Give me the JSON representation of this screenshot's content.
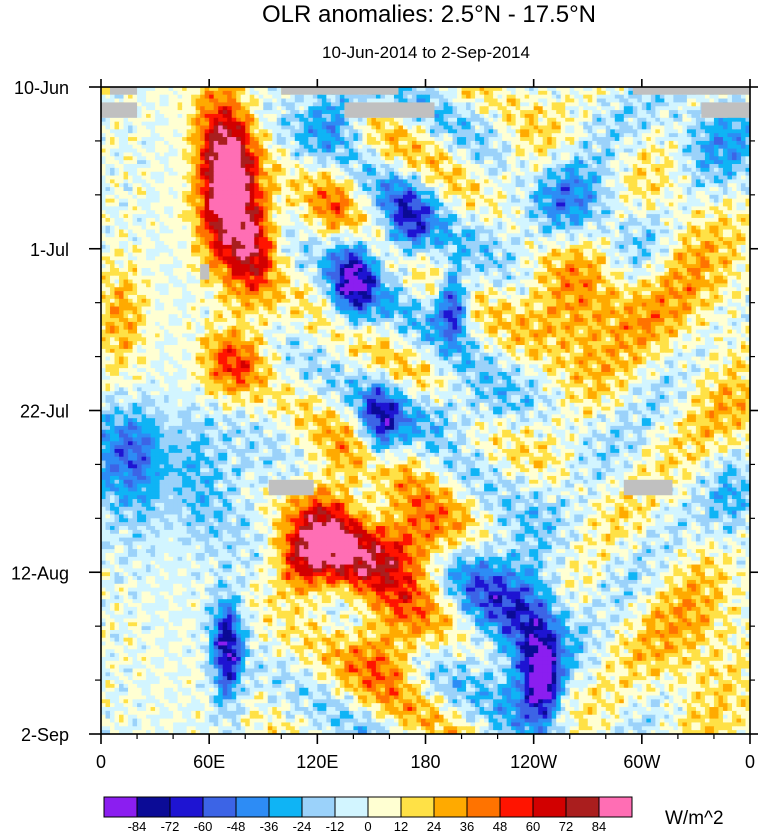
{
  "chart_data": {
    "type": "heatmap",
    "title": "OLR anomalies: 2.5°N - 17.5°N",
    "subtitle": "10-Jun-2014 to 2-Sep-2014",
    "xlabel": "",
    "ylabel": "",
    "x_tick_labels": [
      "0",
      "60E",
      "120E",
      "180",
      "120W",
      "60W",
      "0"
    ],
    "x_tick_values_deg_east": [
      0,
      60,
      120,
      180,
      240,
      300,
      360
    ],
    "xlim_deg_east": [
      0,
      360
    ],
    "y_tick_labels": [
      "10-Jun",
      "1-Jul",
      "22-Jul",
      "12-Aug",
      "2-Sep"
    ],
    "y_tick_values": [
      "2014-06-10",
      "2014-07-01",
      "2014-07-22",
      "2014-08-12",
      "2014-09-02"
    ],
    "ylim": [
      "2014-06-10",
      "2014-09-02"
    ],
    "y_direction": "time increasing downward",
    "colorbar": {
      "units": "W/m^2",
      "levels": [
        -84,
        -72,
        -60,
        -48,
        -36,
        -24,
        -12,
        0,
        12,
        24,
        36,
        48,
        60,
        72,
        84
      ],
      "level_labels": [
        "-84",
        "-72",
        "-60",
        "-48",
        "-36",
        "-24",
        "-12",
        "0",
        "12",
        "24",
        "36",
        "48",
        "60",
        "72",
        "84"
      ],
      "colors": [
        "#8b1ef0",
        "#0b0b96",
        "#1e14d2",
        "#3c64e6",
        "#2d8cf5",
        "#0fb4f5",
        "#9bd2fa",
        "#d2f5ff",
        "#ffffd2",
        "#ffe146",
        "#ffaa00",
        "#ff7300",
        "#ff1400",
        "#d20000",
        "#aa1e1e",
        "#ff6eb4"
      ],
      "placement": "bottom"
    },
    "missing_color": "#c0c0c0",
    "missing_regions": [
      {
        "lon": [
          5,
          20
        ],
        "date": [
          "2014-06-10",
          "2014-06-11"
        ]
      },
      {
        "lon": [
          100,
          165
        ],
        "date": [
          "2014-06-10",
          "2014-06-11"
        ]
      },
      {
        "lon": [
          295,
          360
        ],
        "date": [
          "2014-06-10",
          "2014-06-11"
        ]
      },
      {
        "lon": [
          0,
          20
        ],
        "date": [
          "2014-06-12",
          "2014-06-14"
        ]
      },
      {
        "lon": [
          135,
          185
        ],
        "date": [
          "2014-06-12",
          "2014-06-14"
        ]
      },
      {
        "lon": [
          333,
          360
        ],
        "date": [
          "2014-06-12",
          "2014-06-14"
        ]
      },
      {
        "lon": [
          55,
          60
        ],
        "date": [
          "2014-07-03",
          "2014-07-05"
        ]
      },
      {
        "lon": [
          93,
          118
        ],
        "date": [
          "2014-07-31",
          "2014-08-02"
        ]
      },
      {
        "lon": [
          290,
          317
        ],
        "date": [
          "2014-07-31",
          "2014-08-02"
        ]
      }
    ],
    "features": [
      {
        "lon": 72,
        "date": "2014-06-23",
        "value": 78,
        "sx": 10,
        "sy": 6
      },
      {
        "lon": 65,
        "date": "2014-06-20",
        "value": 50,
        "sx": 12,
        "sy": 9
      },
      {
        "lon": 85,
        "date": "2014-06-29",
        "value": 40,
        "sx": 8,
        "sy": 4
      },
      {
        "lon": 73,
        "date": "2014-07-16",
        "value": 50,
        "sx": 12,
        "sy": 3
      },
      {
        "lon": 125,
        "date": "2014-08-06",
        "value": 60,
        "sx": 13,
        "sy": 5
      },
      {
        "lon": 150,
        "date": "2014-08-09",
        "value": 52,
        "sx": 22,
        "sy": 4
      },
      {
        "lon": 175,
        "date": "2014-08-08",
        "value": 40,
        "sx": 15,
        "sy": 3
      },
      {
        "lon": 160,
        "date": "2014-08-21",
        "value": 52,
        "sx": 16,
        "sy": 4
      },
      {
        "lon": 110,
        "date": "2014-08-11",
        "value": 50,
        "sx": 10,
        "sy": 3
      },
      {
        "lon": 265,
        "date": "2014-07-09",
        "value": 42,
        "sx": 20,
        "sy": 5
      },
      {
        "lon": 315,
        "date": "2014-07-01",
        "value": 30,
        "sx": 25,
        "sy": 8
      },
      {
        "lon": 12,
        "date": "2014-07-10",
        "value": 30,
        "sx": 10,
        "sy": 5
      },
      {
        "lon": 175,
        "date": "2014-07-24",
        "value": 28,
        "sx": 30,
        "sy": 4
      },
      {
        "lon": 330,
        "date": "2014-08-22",
        "value": 25,
        "sx": 20,
        "sy": 8
      },
      {
        "lon": 85,
        "date": "2014-07-04",
        "value": 30,
        "sx": 10,
        "sy": 5
      },
      {
        "lon": 350,
        "date": "2014-07-25",
        "value": 30,
        "sx": 14,
        "sy": 6
      },
      {
        "lon": 238,
        "date": "2014-06-22",
        "value": 30,
        "sx": 12,
        "sy": 4
      },
      {
        "lon": 130,
        "date": "2014-06-24",
        "value": 30,
        "sx": 10,
        "sy": 4
      },
      {
        "lon": 140,
        "date": "2014-07-05",
        "value": -75,
        "sx": 9,
        "sy": 4
      },
      {
        "lon": 195,
        "date": "2014-07-08",
        "value": -78,
        "sx": 6,
        "sy": 3
      },
      {
        "lon": 170,
        "date": "2014-06-28",
        "value": -55,
        "sx": 10,
        "sy": 4
      },
      {
        "lon": 240,
        "date": "2014-08-22",
        "value": -60,
        "sx": 12,
        "sy": 8
      },
      {
        "lon": 245,
        "date": "2014-08-26",
        "value": -75,
        "sx": 6,
        "sy": 3
      },
      {
        "lon": 70,
        "date": "2014-08-22",
        "value": -80,
        "sx": 6,
        "sy": 5
      },
      {
        "lon": 190,
        "date": "2014-07-22",
        "value": -52,
        "sx": 25,
        "sy": 3
      },
      {
        "lon": 155,
        "date": "2014-07-24",
        "value": -60,
        "sx": 8,
        "sy": 4
      },
      {
        "lon": 255,
        "date": "2014-06-25",
        "value": -45,
        "sx": 25,
        "sy": 4
      },
      {
        "lon": 20,
        "date": "2014-07-27",
        "value": -42,
        "sx": 20,
        "sy": 4
      },
      {
        "lon": 340,
        "date": "2014-06-17",
        "value": -40,
        "sx": 20,
        "sy": 4
      },
      {
        "lon": 130,
        "date": "2014-06-13",
        "value": -48,
        "sx": 12,
        "sy": 4
      },
      {
        "lon": 215,
        "date": "2014-08-15",
        "value": -40,
        "sx": 15,
        "sy": 6
      },
      {
        "lon": 300,
        "date": "2014-06-30",
        "value": -28,
        "sx": 15,
        "sy": 4
      },
      {
        "lon": 40,
        "date": "2014-08-01",
        "value": -30,
        "sx": 30,
        "sy": 6
      },
      {
        "lon": 350,
        "date": "2014-08-01",
        "value": -40,
        "sx": 10,
        "sy": 5
      }
    ]
  }
}
